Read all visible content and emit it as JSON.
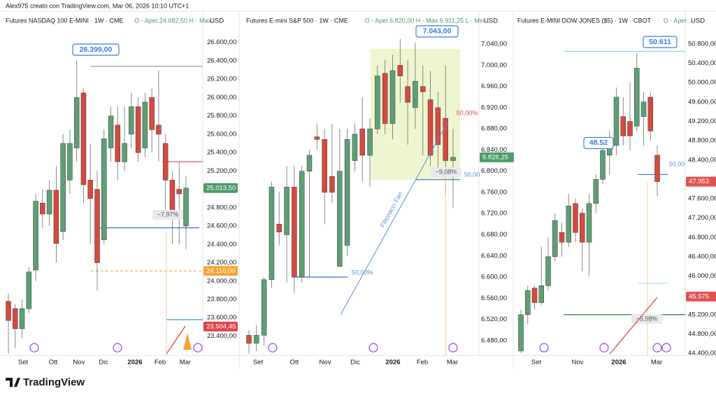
{
  "header": "Alex975 creato con TradingView.com, Mar 06, 2026 10:10 UTC+1",
  "footer": "TradingView",
  "chart_data": [
    {
      "type": "candlestick",
      "title": "Futures NASDAQ 100 E-MINI · 1W · CME",
      "ohlc": "O - Aper.24.682,50  H - Max...",
      "currency": "USD",
      "up_color": "#5e9f75",
      "down_color": "#d44a3f",
      "categories": [
        "Set",
        "Ott",
        "Nov",
        "Dic",
        "2026",
        "Feb",
        "Mar"
      ],
      "ylim": [
        23190,
        26910
      ],
      "yticks": [
        {
          "value": 26600,
          "label": "26.600,00"
        },
        {
          "value": 26400,
          "label": "26.400,00"
        },
        {
          "value": 26200,
          "label": "26.200,00"
        },
        {
          "value": 26000,
          "label": "26.000,00"
        },
        {
          "value": 25800,
          "label": "25.800,00"
        },
        {
          "value": 25600,
          "label": "25.600,00"
        },
        {
          "value": 25400,
          "label": "25.400,00"
        },
        {
          "value": 25200,
          "label": "25.200,00"
        },
        {
          "value": 25000,
          "label": "25.000,00"
        },
        {
          "value": 24800,
          "label": "24.800,00"
        },
        {
          "value": 24600,
          "label": "24.600,00"
        },
        {
          "value": 24400,
          "label": "24.400,00"
        },
        {
          "value": 24200,
          "label": "24.200,00"
        },
        {
          "value": 24000,
          "label": "24.000,00"
        },
        {
          "value": 23800,
          "label": "23.800,00"
        },
        {
          "value": 23600,
          "label": "23.600,00"
        },
        {
          "value": 23400,
          "label": "23.400,00"
        }
      ],
      "candles": [
        {
          "o": 23780,
          "h": 23860,
          "l": 23210,
          "c": 23570
        },
        {
          "o": 23700,
          "h": 23750,
          "l": 23270,
          "c": 23480
        },
        {
          "o": 23480,
          "h": 23800,
          "l": 23380,
          "c": 23700
        },
        {
          "o": 23700,
          "h": 24150,
          "l": 23650,
          "c": 24100
        },
        {
          "o": 24120,
          "h": 24950,
          "l": 24000,
          "c": 24870
        },
        {
          "o": 24850,
          "h": 25000,
          "l": 24580,
          "c": 24730
        },
        {
          "o": 24730,
          "h": 25100,
          "l": 24600,
          "c": 24990
        },
        {
          "o": 24990,
          "h": 25250,
          "l": 24200,
          "c": 24410
        },
        {
          "o": 24540,
          "h": 25600,
          "l": 24450,
          "c": 25500
        },
        {
          "o": 25100,
          "h": 25650,
          "l": 24950,
          "c": 25500
        },
        {
          "o": 25450,
          "h": 26400,
          "l": 25300,
          "c": 26000
        },
        {
          "o": 26050,
          "h": 26100,
          "l": 24850,
          "c": 25050
        },
        {
          "o": 25100,
          "h": 25500,
          "l": 24400,
          "c": 24900
        },
        {
          "o": 25000,
          "h": 25200,
          "l": 23900,
          "c": 24200
        },
        {
          "o": 24450,
          "h": 25650,
          "l": 24400,
          "c": 25550
        },
        {
          "o": 25450,
          "h": 25900,
          "l": 25300,
          "c": 25800
        },
        {
          "o": 25700,
          "h": 25900,
          "l": 25100,
          "c": 25300
        },
        {
          "o": 25300,
          "h": 25900,
          "l": 25200,
          "c": 25500
        },
        {
          "o": 25600,
          "h": 26050,
          "l": 25450,
          "c": 25900
        },
        {
          "o": 25900,
          "h": 26000,
          "l": 25300,
          "c": 25400
        },
        {
          "o": 25450,
          "h": 26050,
          "l": 25350,
          "c": 25950
        },
        {
          "o": 26000,
          "h": 26100,
          "l": 25400,
          "c": 25650
        },
        {
          "o": 25700,
          "h": 26300,
          "l": 25300,
          "c": 25600
        },
        {
          "o": 25500,
          "h": 25600,
          "l": 24700,
          "c": 25100
        },
        {
          "o": 25100,
          "h": 25200,
          "l": 24400,
          "c": 24750
        },
        {
          "o": 25000,
          "h": 25300,
          "l": 24400,
          "c": 24950
        },
        {
          "o": 24600,
          "h": 25150,
          "l": 24350,
          "c": 25013.5
        }
      ],
      "levels": [
        {
          "value": 26340,
          "color": "#9598a1"
        },
        {
          "value": 25300,
          "color": "#e0454d"
        },
        {
          "value": 24580,
          "color": "#3a6fd8"
        },
        {
          "value": 24110,
          "color": "#f7a531"
        },
        {
          "value": 23580,
          "color": "#2a9ab0"
        }
      ],
      "price_tags": [
        {
          "value": 25013.5,
          "label": "25.013,50",
          "color": "#4f9a6a"
        },
        {
          "value": 24110,
          "label": "24.110,00",
          "color": "#f7a531"
        },
        {
          "value": 23504.45,
          "label": "23.504,45",
          "color": "#e0454d"
        }
      ],
      "callouts": [
        {
          "value": 26399,
          "label": "26.399,00"
        }
      ],
      "annotations": [
        {
          "text": "−7,97%",
          "color": "#50535e"
        }
      ]
    },
    {
      "type": "candlestick",
      "title": "Futures E-mini S&P 500 · 1W · CME",
      "ohlc": "O - Aper.6.820,00  H - Max.6.911,25  L - Min...",
      "currency": "USD",
      "up_color": "#5e9f75",
      "down_color": "#d44a3f",
      "categories": [
        "Set",
        "Ott",
        "Nov",
        "Dic",
        "2026",
        "Feb",
        "Mar"
      ],
      "ylim": [
        6452,
        7097
      ],
      "yticks": [
        {
          "value": 7040,
          "label": "7.040,00"
        },
        {
          "value": 7000,
          "label": "7.000,00"
        },
        {
          "value": 6960,
          "label": "6.960,00"
        },
        {
          "value": 6920,
          "label": "6.920,00"
        },
        {
          "value": 6880,
          "label": "6.880,00"
        },
        {
          "value": 6840,
          "label": "6.840,00"
        },
        {
          "value": 6800,
          "label": "6.800,00"
        },
        {
          "value": 6760,
          "label": "6.760,00"
        },
        {
          "value": 6720,
          "label": "6.720,00"
        },
        {
          "value": 6680,
          "label": "6.680,00"
        },
        {
          "value": 6640,
          "label": "6.640,00"
        },
        {
          "value": 6600,
          "label": "6.600,00"
        },
        {
          "value": 6560,
          "label": "6.560,00"
        },
        {
          "value": 6520,
          "label": "6.520,00"
        },
        {
          "value": 6480,
          "label": "6.480,00"
        }
      ],
      "candles": [
        {
          "o": 6490,
          "h": 6500,
          "l": 6455,
          "c": 6475
        },
        {
          "o": 6475,
          "h": 6510,
          "l": 6460,
          "c": 6490
        },
        {
          "o": 6490,
          "h": 6600,
          "l": 6470,
          "c": 6595
        },
        {
          "o": 6595,
          "h": 6780,
          "l": 6580,
          "c": 6770
        },
        {
          "o": 6700,
          "h": 6760,
          "l": 6660,
          "c": 6685
        },
        {
          "o": 6680,
          "h": 6810,
          "l": 6590,
          "c": 6770
        },
        {
          "o": 6770,
          "h": 6810,
          "l": 6570,
          "c": 6600
        },
        {
          "o": 6600,
          "h": 6810,
          "l": 6590,
          "c": 6800
        },
        {
          "o": 6800,
          "h": 6840,
          "l": 6600,
          "c": 6830
        },
        {
          "o": 6865,
          "h": 6890,
          "l": 6840,
          "c": 6860
        },
        {
          "o": 6860,
          "h": 6880,
          "l": 6700,
          "c": 6760
        },
        {
          "o": 6790,
          "h": 6890,
          "l": 6740,
          "c": 6760
        },
        {
          "o": 6620,
          "h": 6880,
          "l": 6620,
          "c": 6800
        },
        {
          "o": 6660,
          "h": 6880,
          "l": 6640,
          "c": 6860
        },
        {
          "o": 6820,
          "h": 6890,
          "l": 6800,
          "c": 6870
        },
        {
          "o": 6880,
          "h": 6940,
          "l": 6780,
          "c": 6830
        },
        {
          "o": 6830,
          "h": 6900,
          "l": 6770,
          "c": 6880
        },
        {
          "o": 6880,
          "h": 7000,
          "l": 6870,
          "c": 6980
        },
        {
          "o": 6985,
          "h": 7010,
          "l": 6870,
          "c": 6890
        },
        {
          "o": 6890,
          "h": 7020,
          "l": 6860,
          "c": 6990
        },
        {
          "o": 7000,
          "h": 7050,
          "l": 6930,
          "c": 6980
        },
        {
          "o": 6960,
          "h": 7010,
          "l": 6850,
          "c": 6930
        },
        {
          "o": 6920,
          "h": 7043,
          "l": 6880,
          "c": 6970
        },
        {
          "o": 6960,
          "h": 7000,
          "l": 6830,
          "c": 6950
        },
        {
          "o": 6935,
          "h": 6990,
          "l": 6810,
          "c": 6830
        },
        {
          "o": 6920,
          "h": 6950,
          "l": 6800,
          "c": 6850
        },
        {
          "o": 6900,
          "h": 7000,
          "l": 6750,
          "c": 6820
        },
        {
          "o": 6820,
          "h": 6880,
          "l": 6730,
          "c": 6826.25
        }
      ],
      "zone": {
        "values": [
          6784,
          7031
        ],
        "color": "#eef6cf"
      },
      "levels": [
        {
          "value": 6600,
          "color": "#3a6fd8"
        },
        {
          "value": 6784,
          "color": "#3a6fd8"
        }
      ],
      "price_tags": [
        {
          "value": 6826.25,
          "label": "6.826,25",
          "color": "#4f9a6a"
        }
      ],
      "callouts": [
        {
          "value": 7043,
          "label": "7.043,00"
        }
      ],
      "annotations": [
        {
          "text": "50,00%",
          "color": "#5b8fe0"
        },
        {
          "text": "Fibonacci Fan",
          "color": "#5b8fe0"
        },
        {
          "text": "50,00%",
          "color": "#e0454d"
        },
        {
          "text": "−9,08%",
          "color": "#50535e"
        },
        {
          "text": "50,00",
          "color": "#5b8fe0"
        }
      ]
    },
    {
      "type": "candlestick",
      "title": "Futures E-MINI DOW JONES ($5) · 1W · CBOT",
      "ohlc": "O - Aper....",
      "currency": "USD",
      "up_color": "#5e9f75",
      "down_color": "#d44a3f",
      "categories": [
        "Set",
        "Nov",
        "2026",
        "Mar"
      ],
      "ylim": [
        44357,
        51422
      ],
      "yticks": [
        {
          "value": 50800,
          "label": "50.800,00"
        },
        {
          "value": 50400,
          "label": "50.400,00"
        },
        {
          "value": 50000,
          "label": "50.000,00"
        },
        {
          "value": 49600,
          "label": "49.600,00"
        },
        {
          "value": 49200,
          "label": "49.200,00"
        },
        {
          "value": 48800,
          "label": "48.800,00"
        },
        {
          "value": 48400,
          "label": "48.400,00"
        },
        {
          "value": 48000,
          "label": "48.000,00"
        },
        {
          "value": 47600,
          "label": "47.600,00"
        },
        {
          "value": 47200,
          "label": "47.200,00"
        },
        {
          "value": 46800,
          "label": "46.800,00"
        },
        {
          "value": 46400,
          "label": "46.400,00"
        },
        {
          "value": 46000,
          "label": "46.000,00"
        },
        {
          "value": 45600,
          "label": "45.600,00"
        },
        {
          "value": 45200,
          "label": "45.200,00"
        },
        {
          "value": 44800,
          "label": "44.800,00"
        },
        {
          "value": 44400,
          "label": "44.400,00"
        }
      ],
      "candles": [
        {
          "o": 44450,
          "h": 45300,
          "l": 44400,
          "c": 45200
        },
        {
          "o": 45200,
          "h": 45800,
          "l": 45000,
          "c": 45700
        },
        {
          "o": 45750,
          "h": 45800,
          "l": 45300,
          "c": 45450
        },
        {
          "o": 45450,
          "h": 46600,
          "l": 45400,
          "c": 45800
        },
        {
          "o": 45800,
          "h": 46800,
          "l": 45700,
          "c": 46400
        },
        {
          "o": 46400,
          "h": 47300,
          "l": 46300,
          "c": 47150
        },
        {
          "o": 46900,
          "h": 47100,
          "l": 46400,
          "c": 46700
        },
        {
          "o": 46700,
          "h": 47700,
          "l": 46600,
          "c": 47450
        },
        {
          "o": 47500,
          "h": 47600,
          "l": 46700,
          "c": 46900
        },
        {
          "o": 47300,
          "h": 47400,
          "l": 46100,
          "c": 46700
        },
        {
          "o": 46700,
          "h": 47700,
          "l": 46000,
          "c": 47500
        },
        {
          "o": 47500,
          "h": 48100,
          "l": 47300,
          "c": 48000
        },
        {
          "o": 48000,
          "h": 48700,
          "l": 47900,
          "c": 48600
        },
        {
          "o": 48500,
          "h": 49000,
          "l": 48100,
          "c": 48700
        },
        {
          "o": 48700,
          "h": 49900,
          "l": 48500,
          "c": 49700
        },
        {
          "o": 49300,
          "h": 49700,
          "l": 48700,
          "c": 48900
        },
        {
          "o": 49200,
          "h": 50000,
          "l": 48600,
          "c": 48900
        },
        {
          "o": 49100,
          "h": 50611,
          "l": 49000,
          "c": 50300
        },
        {
          "o": 49300,
          "h": 49800,
          "l": 48700,
          "c": 49600
        },
        {
          "o": 49700,
          "h": 49800,
          "l": 48800,
          "c": 49000
        },
        {
          "o": 48500,
          "h": 48700,
          "l": 47650,
          "c": 47953
        }
      ],
      "levels": [
        {
          "value": 50650,
          "color": "#7fd3e0"
        },
        {
          "value": 48100,
          "color": "#3a6fd8"
        },
        {
          "value": 45850,
          "color": "#a9e3ec"
        },
        {
          "value": 45200,
          "color": "#2e7d32"
        }
      ],
      "price_tags": [
        {
          "value": 47953,
          "label": "47.953",
          "color": "#e35252"
        },
        {
          "value": 45575,
          "label": "45.575",
          "color": "#e35252"
        }
      ],
      "callouts": [
        {
          "value": 50611,
          "label": "50.611"
        },
        {
          "value": 48520,
          "label": "48.52"
        }
      ],
      "annotations": [
        {
          "text": "50,00",
          "color": "#5b8fe0"
        },
        {
          "text": "−5,98%",
          "color": "#50535e"
        }
      ]
    }
  ]
}
